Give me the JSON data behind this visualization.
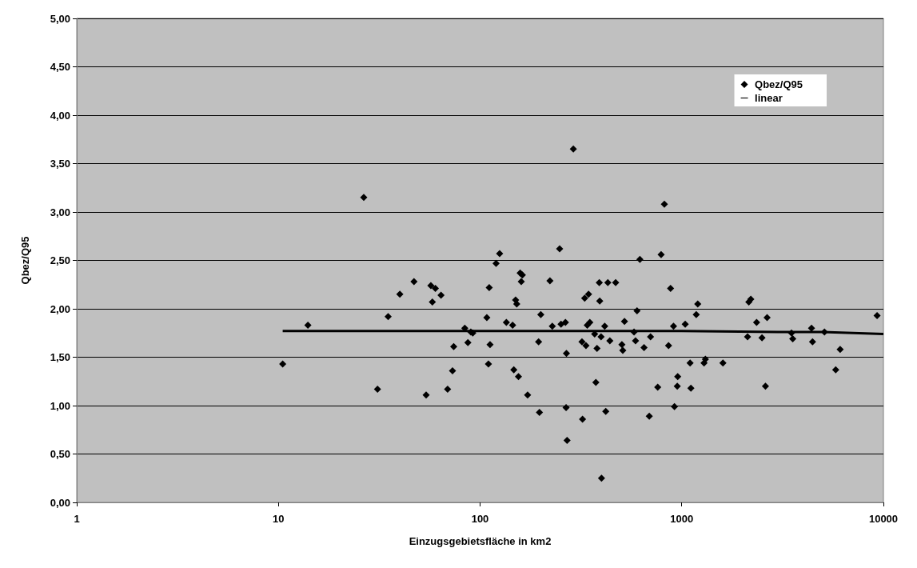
{
  "chart_data": {
    "type": "scatter",
    "xlabel": "Einzugsgebietsfläche in km2",
    "ylabel": "Qbez/Q95",
    "log": "x",
    "grid": "y",
    "legend": "top right",
    "marker": "diamond",
    "xlim": [
      1,
      10000
    ],
    "xticks": [
      1,
      10,
      100,
      1000,
      10000
    ],
    "ylim": [
      0,
      5
    ],
    "yticks": [
      {
        "value": 0,
        "label": "0,00"
      },
      {
        "value": 0.5,
        "label": "0,50"
      },
      {
        "value": 1,
        "label": "1,00"
      },
      {
        "value": 1.5,
        "label": "1,50"
      },
      {
        "value": 2,
        "label": "2,00"
      },
      {
        "value": 2.5,
        "label": "2,50"
      },
      {
        "value": 3,
        "label": "3,00"
      },
      {
        "value": 3.5,
        "label": "3,50"
      },
      {
        "value": 4,
        "label": "4,00"
      },
      {
        "value": 4.5,
        "label": "4,50"
      },
      {
        "value": 5,
        "label": "5,00"
      }
    ],
    "series": [
      {
        "name": "Qbez/Q95",
        "color": "#000000",
        "type": "scatter",
        "x": [
          10.5,
          14,
          26.5,
          31,
          35,
          40,
          47,
          54,
          57,
          58,
          60,
          64,
          69,
          73,
          74,
          84,
          87,
          90,
          92,
          108,
          110,
          111,
          112,
          120,
          125,
          135,
          145,
          147,
          150,
          152,
          155,
          158,
          160,
          162,
          172,
          195,
          197,
          200,
          222,
          228,
          248,
          252,
          265,
          267,
          268,
          270,
          290,
          320,
          322,
          330,
          335,
          340,
          345,
          350,
          370,
          375,
          380,
          390,
          392,
          398,
          400,
          415,
          420,
          430,
          440,
          470,
          505,
          510,
          520,
          580,
          590,
          600,
          620,
          650,
          690,
          700,
          760,
          790,
          820,
          860,
          880,
          910,
          920,
          950,
          955,
          1040,
          1100,
          1110,
          1180,
          1200,
          1290,
          1310,
          1600,
          2120,
          2150,
          2200,
          2350,
          2500,
          2600,
          2650,
          3500,
          3550,
          4400,
          4450,
          5100,
          5800,
          6100,
          9300
        ],
        "values": [
          1.43,
          1.83,
          3.15,
          1.17,
          1.92,
          2.15,
          2.28,
          1.11,
          2.24,
          2.07,
          2.21,
          2.14,
          1.17,
          1.36,
          1.61,
          1.8,
          1.65,
          1.76,
          1.75,
          1.91,
          1.43,
          2.22,
          1.63,
          2.47,
          2.57,
          1.86,
          1.83,
          1.37,
          2.09,
          2.05,
          1.3,
          2.37,
          2.28,
          2.35,
          1.11,
          1.66,
          0.93,
          1.94,
          2.29,
          1.82,
          2.62,
          1.84,
          1.86,
          0.98,
          1.54,
          0.64,
          3.65,
          1.66,
          0.86,
          2.11,
          1.62,
          1.83,
          2.15,
          1.86,
          1.74,
          1.24,
          1.59,
          2.27,
          2.08,
          1.71,
          0.25,
          1.82,
          0.94,
          2.27,
          1.67,
          2.27,
          1.63,
          1.57,
          1.87,
          1.76,
          1.67,
          1.98,
          2.51,
          1.6,
          0.89,
          1.71,
          1.19,
          2.56,
          3.08,
          1.62,
          2.21,
          1.82,
          0.99,
          1.2,
          1.3,
          1.84,
          1.44,
          1.18,
          1.94,
          2.05,
          1.44,
          1.48,
          1.44,
          1.71,
          2.07,
          2.1,
          1.86,
          1.7,
          1.2,
          1.91,
          1.75,
          1.69,
          1.8,
          1.66,
          1.76,
          1.37,
          1.58,
          1.93
        ]
      },
      {
        "name": "linear",
        "color": "#000000",
        "type": "line",
        "marker": "none",
        "line_style": "solid",
        "x": [
          10.5,
          1000,
          3000,
          5000,
          10000
        ],
        "values": [
          1.77,
          1.77,
          1.76,
          1.76,
          1.74
        ]
      }
    ]
  }
}
